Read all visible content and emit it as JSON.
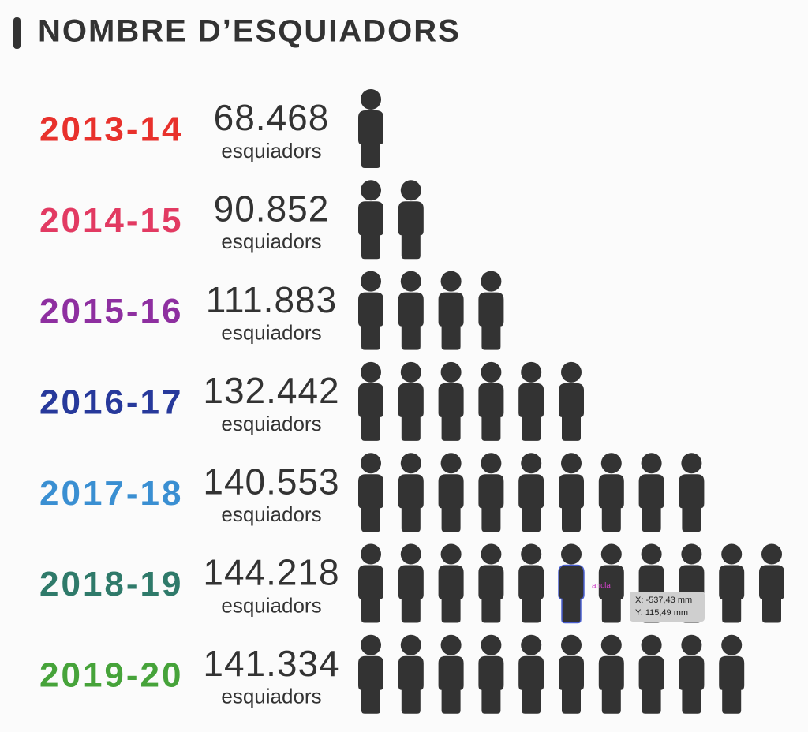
{
  "chart_data": {
    "type": "pictogram",
    "title": "NOMBRE D’ESQUIADORS",
    "categories": [
      "2013-14",
      "2014-15",
      "2015-16",
      "2016-17",
      "2017-18",
      "2018-19",
      "2019-20"
    ],
    "category_colors": [
      "#e8312c",
      "#e23a62",
      "#8e2fa0",
      "#27399b",
      "#3a8fd2",
      "#2f7a6a",
      "#46a33a"
    ],
    "values": [
      68468,
      90852,
      111883,
      132442,
      140553,
      144218,
      141334
    ],
    "value_labels": [
      "68.468",
      "90.852",
      "111.883",
      "132.442",
      "140.553",
      "144.218",
      "141.334"
    ],
    "unit_label": "esquiadors",
    "icons": [
      1,
      2,
      4,
      6,
      9,
      11,
      10
    ],
    "icon_color": "#333333",
    "annotations": [
      "ancla",
      "X: -537,43 mm",
      "Y: 115,49 mm"
    ]
  }
}
